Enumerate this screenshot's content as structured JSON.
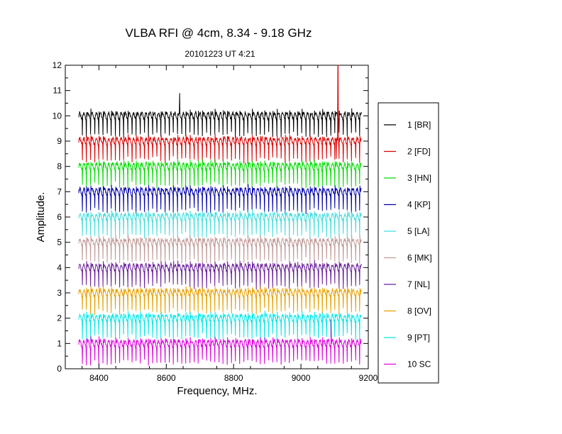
{
  "chart_data": {
    "type": "line",
    "title": "VLBA RFI @ 4cm, 8.34 - 9.18 GHz",
    "subtitle": "20101223   UT 4:21",
    "xlabel": "Frequency, MHz.",
    "ylabel": "Amplitude.",
    "xlim": [
      8300,
      9200
    ],
    "ylim": [
      0,
      12
    ],
    "x_ticks": [
      {
        "value": 8400,
        "label": "8400"
      },
      {
        "value": 8600,
        "label": "8600"
      },
      {
        "value": 8800,
        "label": "8800"
      },
      {
        "value": 9000,
        "label": "9000"
      },
      {
        "value": 9200,
        "label": "9200"
      }
    ],
    "y_ticks": [
      {
        "value": 0,
        "label": "0"
      },
      {
        "value": 1,
        "label": "1"
      },
      {
        "value": 2,
        "label": "2"
      },
      {
        "value": 3,
        "label": "3"
      },
      {
        "value": 4,
        "label": "4"
      },
      {
        "value": 5,
        "label": "5"
      },
      {
        "value": 6,
        "label": "6"
      },
      {
        "value": 7,
        "label": "7"
      },
      {
        "value": 8,
        "label": "8"
      },
      {
        "value": 9,
        "label": "9"
      },
      {
        "value": 10,
        "label": "10"
      },
      {
        "value": 11,
        "label": "11"
      },
      {
        "value": 12,
        "label": "12"
      }
    ],
    "x_range": [
      8340,
      9180
    ],
    "grid": false,
    "legend_position": "right",
    "series": [
      {
        "name": "1 [BR]",
        "color": "#000000",
        "baseline": 10.0,
        "spikes": [
          {
            "x": 8640,
            "y": 10.9
          }
        ]
      },
      {
        "name": "2 [FD]",
        "color": "#dd0000",
        "baseline": 9.0,
        "spikes": [
          {
            "x": 9110,
            "y": 12.0
          },
          {
            "x": 9105,
            "y": 8.3
          }
        ]
      },
      {
        "name": "3 [HN]",
        "color": "#00dd00",
        "baseline": 8.0,
        "spikes": []
      },
      {
        "name": "4 [KP]",
        "color": "#0000aa",
        "baseline": 7.0,
        "spikes": []
      },
      {
        "name": "5 [LA]",
        "color": "#44dddd",
        "baseline": 6.0,
        "spikes": []
      },
      {
        "name": "6 [MK]",
        "color": "#c09a98",
        "baseline": 5.0,
        "spikes": []
      },
      {
        "name": "7 [NL]",
        "color": "#6a1f9a",
        "baseline": 4.0,
        "spikes": []
      },
      {
        "name": "8 [OV]",
        "color": "#e8a000",
        "baseline": 3.0,
        "spikes": []
      },
      {
        "name": "9 [PT]",
        "color": "#00e8e8",
        "baseline": 2.0,
        "spikes": []
      },
      {
        "name": "10 SC",
        "color": "#dd00dd",
        "baseline": 1.0,
        "spikes": [
          {
            "x": 9090,
            "y": 1.95
          }
        ]
      }
    ]
  }
}
